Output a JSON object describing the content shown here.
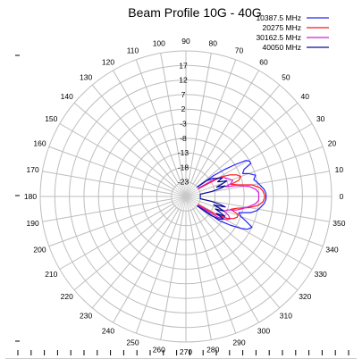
{
  "chart_data": {
    "type": "polar-line",
    "title": "Beam Profile 10G - 40G",
    "angle_ticks_deg": [
      0,
      10,
      20,
      30,
      40,
      50,
      60,
      70,
      80,
      90,
      100,
      110,
      120,
      130,
      140,
      150,
      160,
      170,
      180,
      190,
      200,
      210,
      220,
      230,
      240,
      250,
      260,
      270,
      280,
      290,
      300,
      310,
      320,
      330,
      340,
      350
    ],
    "radial_ticks": [
      "-23",
      "-18",
      "-13",
      "-8",
      "-3",
      "2",
      "7",
      "12",
      "17"
    ],
    "r_range": [
      -28,
      22
    ],
    "legend_placement": "top-right",
    "series": [
      {
        "name": "10387.5 MHz",
        "color": "#2323ff",
        "points": [
          [
            -38,
            -23
          ],
          [
            -36,
            -14
          ],
          [
            -33,
            -10
          ],
          [
            -30,
            -6
          ],
          [
            -28,
            -4
          ],
          [
            -25,
            -3
          ],
          [
            -22,
            -6
          ],
          [
            -20,
            -8
          ],
          [
            -17,
            -9
          ],
          [
            -14,
            -5
          ],
          [
            -11,
            -3
          ],
          [
            -8,
            -2
          ],
          [
            -5,
            -1
          ],
          [
            -2,
            -0.5
          ],
          [
            0,
            -0.5
          ],
          [
            2,
            -0.5
          ],
          [
            5,
            -1
          ],
          [
            8,
            -2
          ],
          [
            11,
            -3
          ],
          [
            14,
            -4
          ],
          [
            17,
            -3
          ],
          [
            20,
            -5
          ],
          [
            22,
            -7
          ],
          [
            25,
            -6
          ],
          [
            27,
            -3
          ],
          [
            29,
            -3
          ],
          [
            31,
            -4
          ],
          [
            33,
            -8
          ],
          [
            35,
            -12
          ],
          [
            37,
            -16
          ],
          [
            40,
            -23
          ]
        ]
      },
      {
        "name": "20275 MHz",
        "color": "#ff1818",
        "points": [
          [
            -34,
            -23
          ],
          [
            -31,
            -16
          ],
          [
            -28,
            -12
          ],
          [
            -25,
            -10
          ],
          [
            -22,
            -9
          ],
          [
            -19,
            -9
          ],
          [
            -16,
            -12
          ],
          [
            -13,
            -10
          ],
          [
            -10,
            -6
          ],
          [
            -7,
            -3
          ],
          [
            -4,
            -1.5
          ],
          [
            -1,
            -1
          ],
          [
            1,
            -1
          ],
          [
            4,
            -1.5
          ],
          [
            7,
            -2.5
          ],
          [
            10,
            -5
          ],
          [
            13,
            -10
          ],
          [
            15,
            -12
          ],
          [
            17,
            -9
          ],
          [
            20,
            -8
          ],
          [
            23,
            -9
          ],
          [
            26,
            -11
          ],
          [
            29,
            -14
          ],
          [
            32,
            -23
          ]
        ]
      },
      {
        "name": "30162.5 MHz",
        "color": "#d81ad8",
        "points": [
          [
            -36,
            -23
          ],
          [
            -33,
            -15
          ],
          [
            -30,
            -12
          ],
          [
            -27,
            -11
          ],
          [
            -24,
            -12
          ],
          [
            -21,
            -14
          ],
          [
            -18,
            -13
          ],
          [
            -15,
            -10
          ],
          [
            -12,
            -8
          ],
          [
            -9,
            -6
          ],
          [
            -6,
            -4
          ],
          [
            -3,
            -3
          ],
          [
            0,
            -3
          ],
          [
            3,
            -3
          ],
          [
            6,
            -4
          ],
          [
            9,
            -6
          ],
          [
            12,
            -10
          ],
          [
            14,
            -14
          ],
          [
            16,
            -12
          ],
          [
            19,
            -11
          ],
          [
            22,
            -12
          ],
          [
            25,
            -13
          ],
          [
            28,
            -14
          ],
          [
            31,
            -16
          ],
          [
            34,
            -23
          ]
        ]
      },
      {
        "name": "40050 MHz",
        "color": "#0a0a9a",
        "points": [
          [
            -40,
            -23
          ],
          [
            -37,
            -17
          ],
          [
            -34,
            -14
          ],
          [
            -31,
            -13
          ],
          [
            -29,
            -16
          ],
          [
            -27,
            -13
          ],
          [
            -25,
            -15
          ],
          [
            -23,
            -17
          ],
          [
            -21,
            -14
          ],
          [
            -19,
            -16
          ],
          [
            -17,
            -18
          ],
          [
            -15,
            -14
          ],
          [
            -13,
            -16
          ],
          [
            -11,
            -19
          ],
          [
            -9,
            -23
          ],
          [
            9,
            -23
          ],
          [
            11,
            -19
          ],
          [
            13,
            -16
          ],
          [
            15,
            -14
          ],
          [
            17,
            -17
          ],
          [
            19,
            -15
          ],
          [
            21,
            -13
          ],
          [
            23,
            -15
          ],
          [
            25,
            -16
          ],
          [
            27,
            -14
          ],
          [
            29,
            -15
          ],
          [
            31,
            -16
          ],
          [
            34,
            -17
          ],
          [
            37,
            -19
          ],
          [
            40,
            -23
          ]
        ]
      }
    ]
  }
}
